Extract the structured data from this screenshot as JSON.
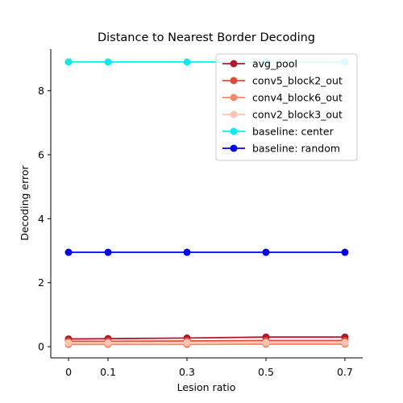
{
  "chart_data": {
    "type": "line",
    "title": "Distance to Nearest Border Decoding",
    "xlabel": "Lesion ratio",
    "ylabel": "Decoding error",
    "x": [
      0,
      0.1,
      0.3,
      0.5,
      0.7
    ],
    "x_tick_labels": [
      "0",
      "0.1",
      "0.3",
      "0.5",
      "0.7"
    ],
    "xlim": [
      -0.045,
      0.745
    ],
    "y_ticks": [
      0,
      2,
      4,
      6,
      8
    ],
    "y_tick_labels": [
      "0",
      "2",
      "4",
      "6",
      "8"
    ],
    "ylim": [
      -0.35,
      9.3
    ],
    "grid": false,
    "legend_position": "top-right",
    "series": [
      {
        "name": "avg_pool",
        "color": "#b2182b",
        "values": [
          0.24,
          0.25,
          0.27,
          0.3,
          0.3
        ]
      },
      {
        "name": "conv5_block2_out",
        "color": "#e34a33",
        "values": [
          0.17,
          0.17,
          0.18,
          0.19,
          0.19
        ]
      },
      {
        "name": "conv4_block6_out",
        "color": "#f4876a",
        "values": [
          0.07,
          0.07,
          0.07,
          0.08,
          0.08
        ]
      },
      {
        "name": "conv2_block3_out",
        "color": "#fcc5b0",
        "values": [
          0.12,
          0.12,
          0.13,
          0.13,
          0.13
        ]
      },
      {
        "name": "baseline: center",
        "color": "#00f0f0",
        "values": [
          8.9,
          8.9,
          8.9,
          8.9,
          8.9
        ]
      },
      {
        "name": "baseline: random",
        "color": "#0000ee",
        "values": [
          2.95,
          2.95,
          2.95,
          2.95,
          2.95
        ]
      }
    ]
  }
}
